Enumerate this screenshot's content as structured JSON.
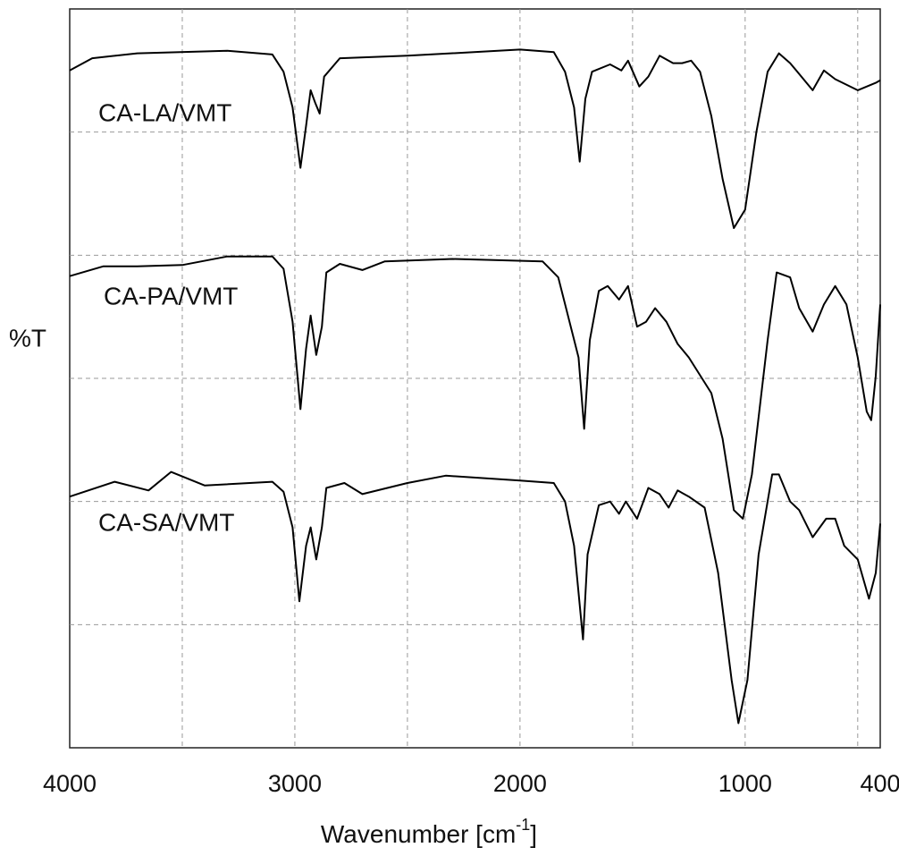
{
  "chart_data": {
    "type": "line",
    "ylabel": "%T",
    "xlabel": [
      "Wavenumber [cm",
      "-1",
      "]"
    ],
    "xlim": [
      4000,
      400
    ],
    "xticks": [
      4000,
      3000,
      2000,
      1000,
      400
    ],
    "xminor": [
      3500,
      2500,
      1500,
      500
    ],
    "ylim": [
      0,
      6
    ],
    "yticks": [
      1,
      2,
      3,
      4,
      5
    ],
    "grid": true,
    "series": [
      {
        "name": "CA-LA/VMT",
        "color": "#000000",
        "x": [
          4000,
          3900,
          3700,
          3300,
          3100,
          3050,
          3010,
          2975,
          2950,
          2930,
          2910,
          2890,
          2870,
          2800,
          2500,
          2000,
          1850,
          1800,
          1760,
          1735,
          1710,
          1680,
          1600,
          1550,
          1520,
          1470,
          1430,
          1380,
          1320,
          1280,
          1240,
          1200,
          1150,
          1100,
          1050,
          1000,
          950,
          900,
          850,
          800,
          700,
          650,
          600,
          500,
          420,
          400
        ],
        "values": [
          5.5,
          5.6,
          5.64,
          5.66,
          5.63,
          5.49,
          5.2,
          4.71,
          5.05,
          5.34,
          5.24,
          5.15,
          5.45,
          5.6,
          5.62,
          5.67,
          5.65,
          5.49,
          5.2,
          4.76,
          5.27,
          5.49,
          5.55,
          5.5,
          5.58,
          5.37,
          5.45,
          5.62,
          5.56,
          5.56,
          5.58,
          5.49,
          5.13,
          4.62,
          4.22,
          4.37,
          5.0,
          5.49,
          5.64,
          5.56,
          5.34,
          5.5,
          5.43,
          5.34,
          5.4,
          5.42
        ]
      },
      {
        "name": "CA-PA/VMT",
        "color": "#000000",
        "x": [
          4000,
          3850,
          3700,
          3500,
          3300,
          3100,
          3050,
          3010,
          2975,
          2950,
          2930,
          2905,
          2880,
          2860,
          2800,
          2700,
          2600,
          2300,
          1900,
          1830,
          1780,
          1740,
          1715,
          1690,
          1650,
          1610,
          1560,
          1520,
          1480,
          1440,
          1400,
          1350,
          1300,
          1250,
          1150,
          1100,
          1050,
          1010,
          970,
          900,
          860,
          800,
          760,
          700,
          650,
          600,
          550,
          500,
          460,
          440,
          420,
          400
        ],
        "values": [
          3.83,
          3.91,
          3.91,
          3.92,
          3.99,
          3.99,
          3.89,
          3.46,
          2.75,
          3.24,
          3.51,
          3.19,
          3.42,
          3.86,
          3.93,
          3.88,
          3.95,
          3.97,
          3.95,
          3.82,
          3.46,
          3.17,
          2.59,
          3.31,
          3.71,
          3.75,
          3.64,
          3.75,
          3.42,
          3.46,
          3.57,
          3.46,
          3.28,
          3.17,
          2.88,
          2.51,
          1.93,
          1.86,
          2.22,
          3.31,
          3.86,
          3.82,
          3.57,
          3.38,
          3.6,
          3.75,
          3.6,
          3.17,
          2.73,
          2.66,
          3.02,
          3.6
        ]
      },
      {
        "name": "CA-SA/VMT",
        "color": "#000000",
        "x": [
          4000,
          3800,
          3650,
          3550,
          3400,
          3100,
          3050,
          3010,
          2980,
          2950,
          2930,
          2905,
          2880,
          2860,
          2780,
          2700,
          2500,
          2330,
          2000,
          1850,
          1800,
          1760,
          1720,
          1700,
          1650,
          1600,
          1560,
          1530,
          1480,
          1430,
          1380,
          1340,
          1300,
          1250,
          1180,
          1120,
          1060,
          1030,
          990,
          940,
          880,
          850,
          800,
          760,
          700,
          640,
          600,
          560,
          500,
          450,
          420,
          400
        ],
        "values": [
          2.04,
          2.16,
          2.09,
          2.24,
          2.13,
          2.16,
          2.08,
          1.79,
          1.19,
          1.64,
          1.79,
          1.53,
          1.79,
          2.11,
          2.15,
          2.06,
          2.15,
          2.21,
          2.17,
          2.15,
          2.0,
          1.64,
          0.88,
          1.57,
          1.97,
          2.0,
          1.9,
          2.0,
          1.86,
          2.11,
          2.06,
          1.95,
          2.09,
          2.04,
          1.95,
          1.42,
          0.55,
          0.2,
          0.55,
          1.57,
          2.22,
          2.22,
          2.0,
          1.93,
          1.71,
          1.86,
          1.86,
          1.64,
          1.53,
          1.21,
          1.42,
          1.82
        ]
      }
    ]
  }
}
